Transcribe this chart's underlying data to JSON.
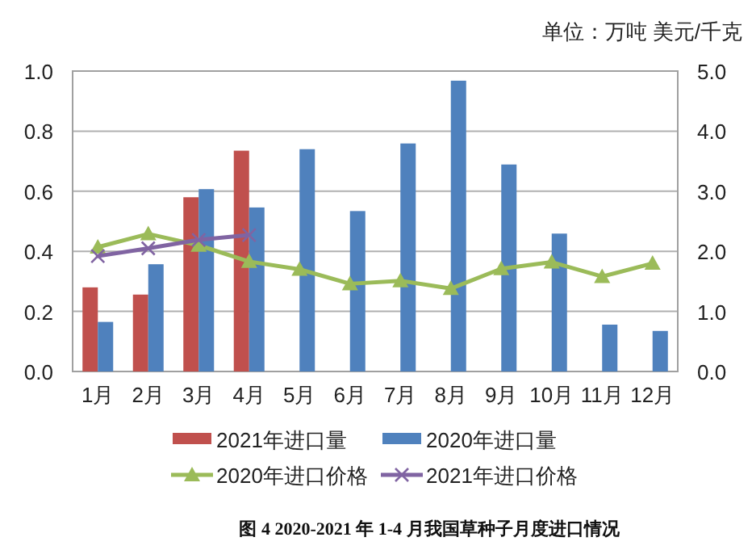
{
  "chart_data": {
    "type": "bar",
    "title": "图 4 2020-2021 年 1-4 月我国草种子月度进口情况",
    "annotations": [
      "单位：万吨  美元/千克"
    ],
    "categories": [
      "1月",
      "2月",
      "3月",
      "4月",
      "5月",
      "6月",
      "7月",
      "8月",
      "9月",
      "10月",
      "11月",
      "12月"
    ],
    "series": [
      {
        "name": "2021年进口量",
        "color": "#c0504d",
        "values": [
          0.28,
          0.256,
          0.58,
          0.735,
          null,
          null,
          null,
          null,
          null,
          null,
          null,
          null
        ]
      },
      {
        "name": "2020年进口量",
        "color": "#4f81bd",
        "values": [
          0.165,
          0.357,
          0.607,
          0.546,
          0.74,
          0.534,
          0.759,
          0.968,
          0.689,
          0.459,
          0.156,
          0.135
        ]
      },
      {
        "name": "2020年进口价格",
        "type": "line",
        "axis": "y2",
        "marker": "triangle",
        "color": "#9bbb59",
        "values": [
          2.07,
          2.29,
          2.1,
          1.83,
          1.7,
          1.46,
          1.51,
          1.38,
          1.71,
          1.82,
          1.58,
          1.8
        ]
      },
      {
        "name": "2021年进口价格",
        "type": "line",
        "axis": "y2",
        "marker": "cross",
        "color": "#8064a2",
        "values": [
          1.92,
          2.05,
          2.19,
          2.27,
          null,
          null,
          null,
          null,
          null,
          null,
          null,
          null
        ]
      }
    ],
    "ylim": [
      0,
      1
    ],
    "yticks": [
      {
        "value": 0,
        "label": "0.0"
      },
      {
        "value": 0.2,
        "label": "0.2"
      },
      {
        "value": 0.4,
        "label": "0.4"
      },
      {
        "value": 0.6,
        "label": "0.6"
      },
      {
        "value": 0.8,
        "label": "0.8"
      },
      {
        "value": 1,
        "label": "1.0"
      }
    ],
    "y2lim": [
      0,
      5
    ],
    "y2ticks": [
      {
        "value": 0,
        "label": "0.0"
      },
      {
        "value": 1,
        "label": "1.0"
      },
      {
        "value": 2,
        "label": "2.0"
      },
      {
        "value": 3,
        "label": "3.0"
      },
      {
        "value": 4,
        "label": "4.0"
      },
      {
        "value": 5,
        "label": "5.0"
      }
    ],
    "grid": "y",
    "legend": "bottom"
  }
}
